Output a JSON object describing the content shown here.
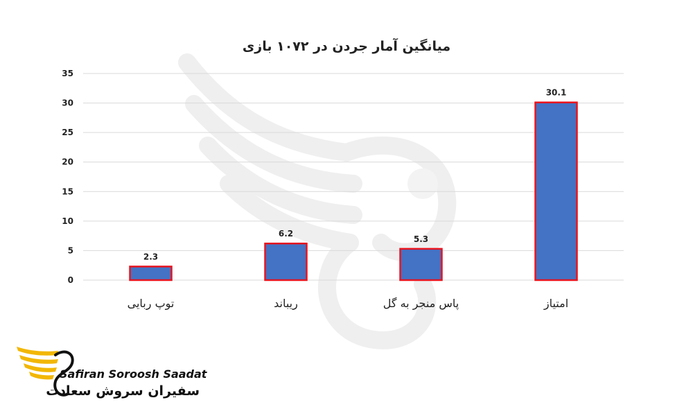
{
  "chart_data": {
    "type": "bar",
    "title": "میانگین آمار جردن در ۱۰۷۲ بازی",
    "categories": [
      "توپ ربایی",
      "ریباند",
      "پاس منجر به گل",
      "امتیاز"
    ],
    "values": [
      2.3,
      6.2,
      5.3,
      30.1
    ],
    "value_labels": [
      "2.3",
      "6.2",
      "5.3",
      "30.1"
    ],
    "y_ticks": [
      0,
      5,
      10,
      15,
      20,
      25,
      30,
      35
    ],
    "ylim": [
      0,
      35
    ],
    "grid": true,
    "legend": "none",
    "bar_fill": "#4472C4",
    "bar_border": "#E8141E"
  },
  "logo": {
    "text_en": "Safiran Soroosh Saadat",
    "text_fa": "سفیران سروش سعادت",
    "accent": "#F2B705"
  },
  "colors": {
    "grid": "#D9D9D9",
    "text": "#222222",
    "watermark": "#F0F0F0"
  }
}
